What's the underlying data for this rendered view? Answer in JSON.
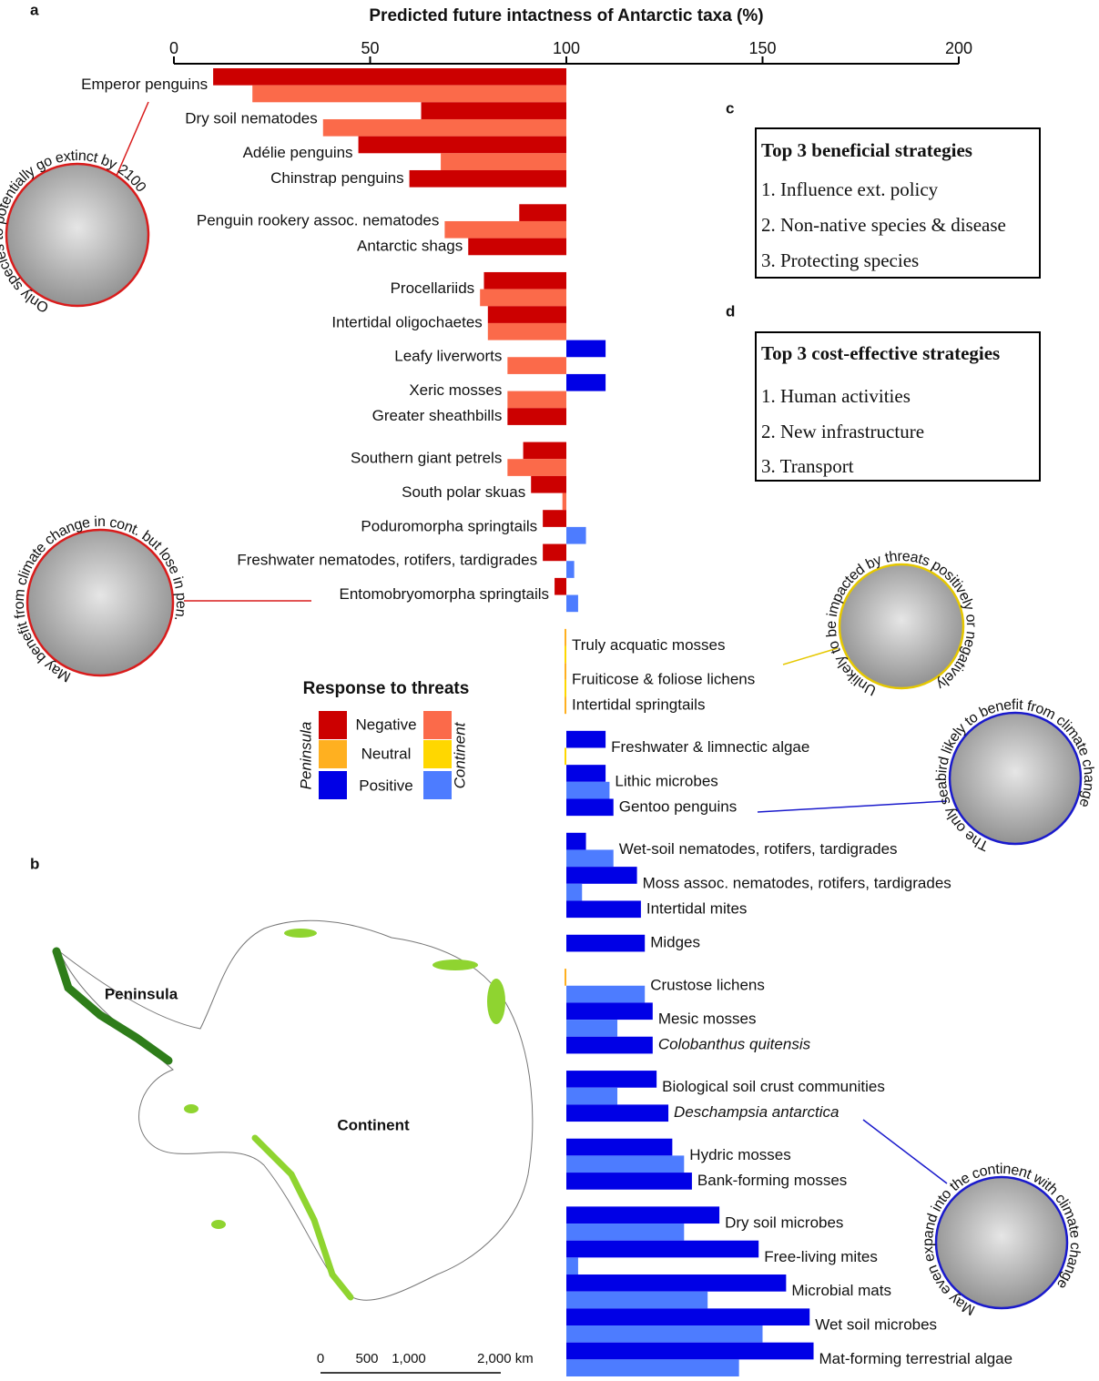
{
  "panel_labels": [
    "a",
    "b",
    "c",
    "d"
  ],
  "chart_data": {
    "type": "bar",
    "title": "Predicted future intactness of Antarctic taxa (%)",
    "xlim": [
      0,
      200
    ],
    "xticks": [
      0,
      50,
      100,
      150,
      200
    ],
    "baseline": 100,
    "legend_title": "Response to threats",
    "responses": [
      "Negative",
      "Neutral",
      "Positive"
    ],
    "categories": [
      "Emperor penguins",
      "Dry soil nematodes",
      "Adélie penguins",
      "Chinstrap penguins",
      "Penguin rookery assoc. nematodes",
      "Antarctic shags",
      "Procellariids",
      "Intertidal oligochaetes",
      "Leafy liverworts",
      "Xeric mosses",
      "Greater sheathbills",
      "Southern giant petrels",
      "South polar skuas",
      "Poduromorpha springtails",
      "Freshwater nematodes, rotifers, tardigrades",
      "Entomobryomorpha springtails",
      "Truly acquatic mosses",
      "Fruiticose & foliose lichens",
      "Intertidal springtails",
      "Freshwater & limnectic algae",
      "Lithic microbes",
      "Gentoo penguins",
      "Wet-soil nematodes, rotifers, tardigrades",
      "Moss assoc. nematodes, rotifers, tardigrades",
      "Intertidal mites",
      "Midges",
      "Crustose lichens",
      "Mesic mosses",
      "Colobanthus quitensis",
      "Biological soil crust communities",
      "Deschampsia antarctica",
      "Hydric mosses",
      "Bank-forming mosses",
      "Dry soil microbes",
      "Free-living mites",
      "Microbial mats",
      "Wet soil microbes",
      "Mat-forming terrestrial algae"
    ],
    "series": [
      {
        "name": "Peninsula",
        "colors": [
          "#cc0000",
          "#ffb020",
          "#0000e6"
        ],
        "values": [
          10,
          63,
          47,
          60,
          88,
          75,
          79,
          80,
          110,
          110,
          85,
          89,
          91,
          94,
          94,
          97,
          100,
          100,
          100,
          110,
          110,
          112,
          105,
          118,
          119,
          120,
          100,
          122,
          122,
          123,
          126,
          127,
          132,
          139,
          149,
          156,
          162,
          163
        ]
      },
      {
        "name": "Continent",
        "colors": [
          "#fb6a4a",
          "#ffd700",
          "#4d7cff"
        ],
        "values": [
          20,
          38,
          68,
          null,
          69,
          null,
          78,
          80,
          85,
          85,
          null,
          85,
          99,
          105,
          102,
          103,
          100,
          100,
          null,
          100,
          111,
          null,
          112,
          104,
          null,
          null,
          120,
          113,
          null,
          113,
          null,
          130,
          null,
          130,
          103,
          136,
          150,
          144
        ]
      }
    ]
  },
  "annotations": [
    "Only species to potentially go extinct by 2100",
    "May benefit from climate change in cont. but lose in pen.",
    "Unlikely to be impacted by threats positively or negatively",
    "The only seabird likely to benefit from climate change",
    "May even expand into the continent with climate change"
  ],
  "strategies": [
    {
      "title": "Top 3 beneficial strategies",
      "items": [
        "1. Influence ext. policy",
        "2. Non-native species & disease",
        "3. Protecting species"
      ]
    },
    {
      "title": "Top 3 cost-effective strategies",
      "items": [
        "1. Human activities",
        "2. New infrastructure",
        "3. Transport"
      ]
    }
  ],
  "map": {
    "regions": [
      "Peninsula",
      "Continent"
    ],
    "scale_labels": [
      "0",
      "500",
      "1,000",
      "2,000 km"
    ]
  }
}
